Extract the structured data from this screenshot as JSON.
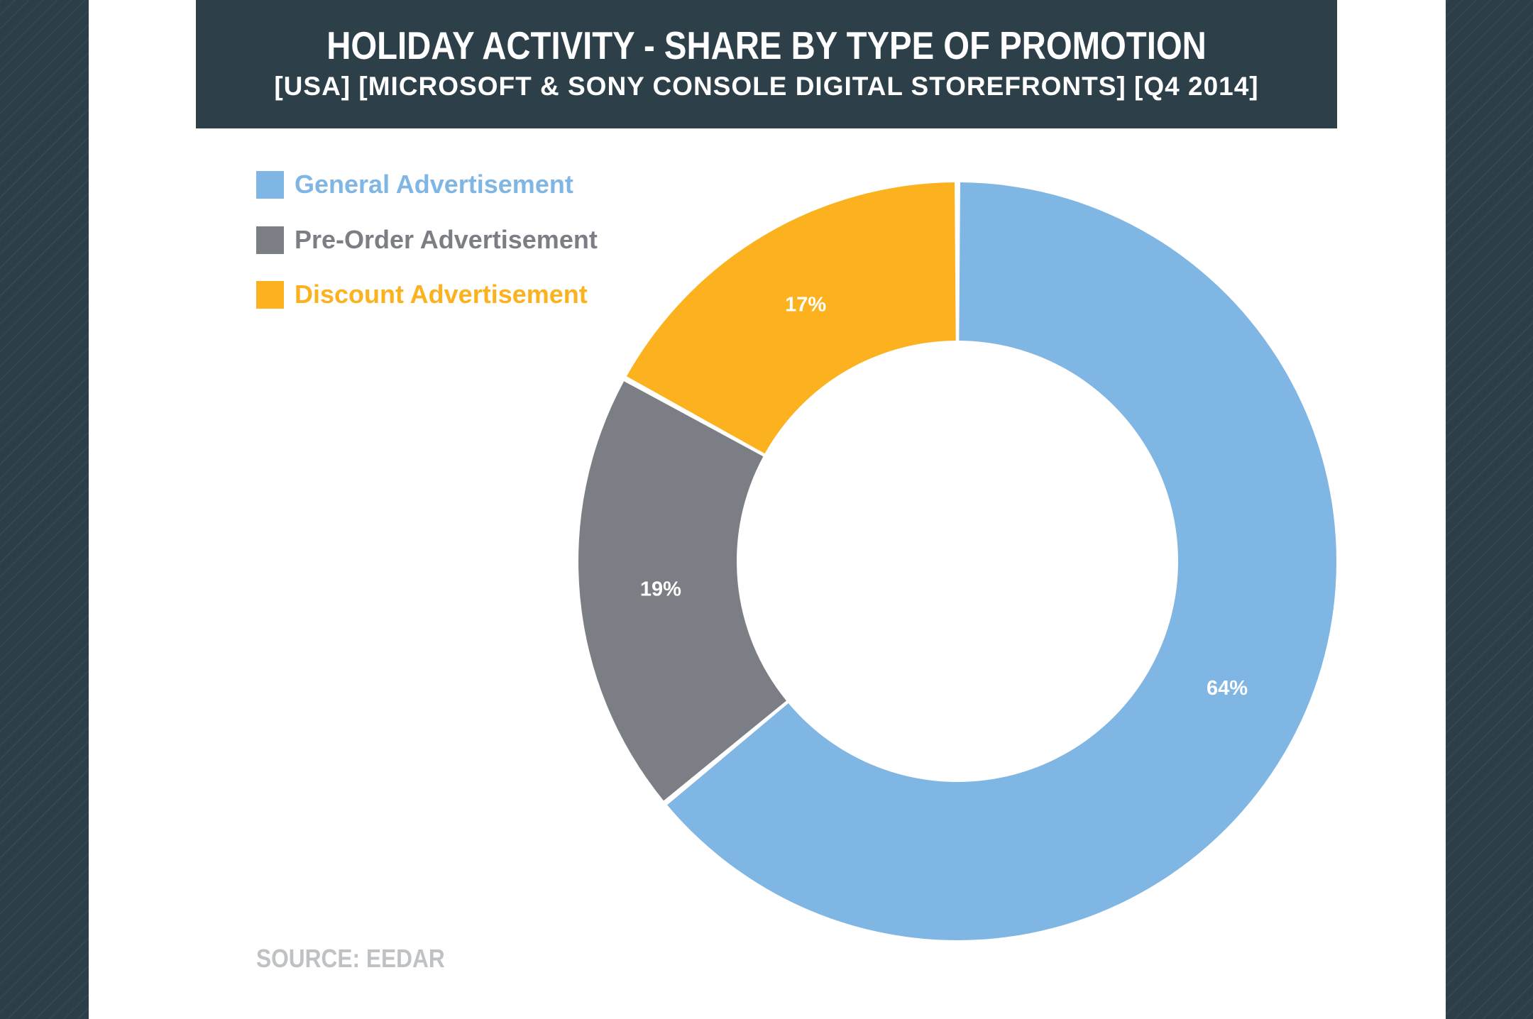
{
  "header": {
    "title": "HOLIDAY ACTIVITY - SHARE BY TYPE OF PROMOTION",
    "subtitle": "[USA] [MICROSOFT & SONY CONSOLE DIGITAL STOREFRONTS] [Q4 2014]"
  },
  "source": "SOURCE: EEDAR",
  "colors": {
    "background": "#2c3e48",
    "title_bar": "#2d404a",
    "source_text": "#bfc2c5"
  },
  "chart_data": {
    "type": "pie",
    "title": "HOLIDAY ACTIVITY - SHARE BY TYPE OF PROMOTION",
    "subtitle": "[USA] [MICROSOFT & SONY CONSOLE DIGITAL STOREFRONTS] [Q4 2014]",
    "donut": true,
    "legend_position": "top-left",
    "slices": [
      {
        "label": "General Advertisement",
        "value": 64,
        "display": "64%",
        "color": "#80b6e3"
      },
      {
        "label": "Pre-Order Advertisement",
        "value": 19,
        "display": "19%",
        "color": "#7b7e84"
      },
      {
        "label": "Discount Advertisement",
        "value": 17,
        "display": "17%",
        "color": "#fbb21e"
      }
    ]
  }
}
